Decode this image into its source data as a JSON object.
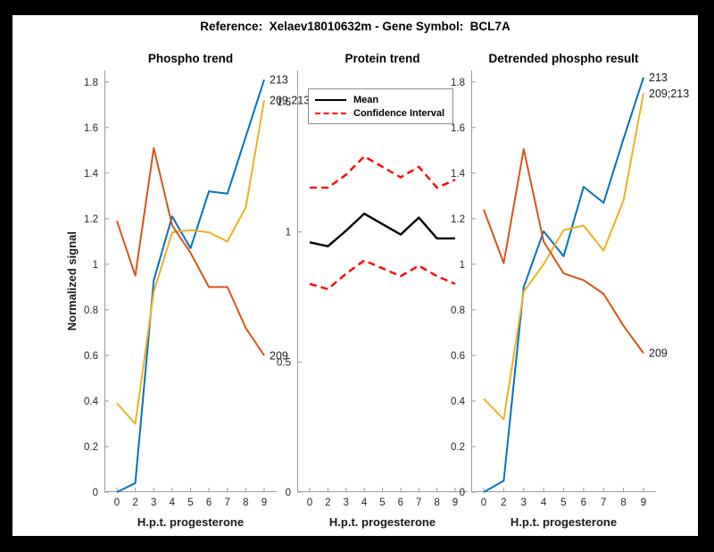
{
  "header": {
    "suptitle": "Reference:  Xelaev18010632m - Gene Symbol:  BCL7A"
  },
  "theme": {
    "background": "#000000",
    "figure_background": "#ffffff",
    "axis_color": "#999999",
    "tick_text_color": "#262626",
    "blue": "#0072BD",
    "orange": "#D95319",
    "yellow": "#EDB120",
    "ci_red": "#FF0000"
  },
  "chart_data": [
    {
      "type": "line",
      "title": "Phospho trend",
      "xlabel": "H.p.t. progesterone",
      "ylabel": "Normalized signal",
      "x_ticklabels": [
        "0",
        "2",
        "3",
        "4",
        "5",
        "6",
        "7",
        "8",
        "9"
      ],
      "yticks": [
        0,
        0.2,
        0.4,
        0.6,
        0.8,
        1,
        1.2,
        1.4,
        1.6,
        1.8
      ],
      "yticklabels": [
        "0",
        "0.2",
        "0.4",
        "0.6",
        "0.8",
        "1",
        "1.2",
        "1.4",
        "1.6",
        "1.8"
      ],
      "ylim": [
        0,
        1.85
      ],
      "grid": false,
      "legend": null,
      "series": [
        {
          "name": "213",
          "color": "#0072BD",
          "style": "solid",
          "end_label": "213",
          "values": [
            0,
            0.04,
            0.93,
            1.21,
            1.07,
            1.32,
            1.31,
            1.56,
            1.81
          ]
        },
        {
          "name": "209;213",
          "color": "#EDB120",
          "style": "solid",
          "end_label": "209;213",
          "values": [
            0.39,
            0.3,
            0.88,
            1.14,
            1.15,
            1.14,
            1.1,
            1.25,
            1.72
          ]
        },
        {
          "name": "209",
          "color": "#D95319",
          "style": "solid",
          "end_label": "209",
          "values": [
            1.19,
            0.95,
            1.51,
            1.17,
            1.05,
            0.9,
            0.9,
            0.72,
            0.6
          ]
        }
      ]
    },
    {
      "type": "line",
      "title": "Protein trend",
      "xlabel": "H.p.t. progesterone",
      "ylabel": "",
      "x_ticklabels": [
        "0",
        "2",
        "3",
        "4",
        "5",
        "6",
        "7",
        "8",
        "9"
      ],
      "yticks": [
        0,
        0.5,
        1,
        1.5
      ],
      "yticklabels": [
        "0",
        "0.5",
        "1",
        "1.5"
      ],
      "ylim": [
        0,
        1.62
      ],
      "grid": false,
      "legend": {
        "position": "northwest",
        "entries": [
          {
            "label": "Mean",
            "color": "#000000",
            "style": "solid"
          },
          {
            "label": "Confidence Interval",
            "color": "#FF0000",
            "style": "dashed"
          }
        ]
      },
      "series": [
        {
          "name": "Mean",
          "color": "#000000",
          "style": "solid",
          "width": 2.4,
          "values": [
            0.96,
            0.945,
            1.005,
            1.07,
            1.03,
            0.99,
            1.055,
            0.975,
            0.975
          ]
        },
        {
          "name": "Confidence Interval upper",
          "color": "#FF0000",
          "style": "dashed",
          "width": 2.4,
          "values": [
            1.17,
            1.17,
            1.22,
            1.29,
            1.25,
            1.21,
            1.25,
            1.17,
            1.2
          ]
        },
        {
          "name": "Confidence Interval lower",
          "color": "#FF0000",
          "style": "dashed",
          "width": 2.4,
          "values": [
            0.8,
            0.78,
            0.84,
            0.89,
            0.86,
            0.83,
            0.87,
            0.83,
            0.8
          ]
        }
      ]
    },
    {
      "type": "line",
      "title": "Detrended phospho result",
      "xlabel": "H.p.t. progesterone",
      "ylabel": "",
      "x_ticklabels": [
        "0",
        "2",
        "3",
        "4",
        "5",
        "6",
        "7",
        "8",
        "9"
      ],
      "yticks": [
        0,
        0.2,
        0.4,
        0.6,
        0.8,
        1,
        1.2,
        1.4,
        1.6,
        1.8
      ],
      "yticklabels": [
        "0",
        "0.2",
        "0.4",
        "0.6",
        "0.8",
        "1",
        "1.2",
        "1.4",
        "1.6",
        "1.8"
      ],
      "ylim": [
        0,
        1.85
      ],
      "grid": false,
      "legend": null,
      "series": [
        {
          "name": "213",
          "color": "#0072BD",
          "style": "solid",
          "end_label": "213",
          "values": [
            0,
            0.05,
            0.9,
            1.145,
            1.035,
            1.34,
            1.27,
            1.55,
            1.82
          ]
        },
        {
          "name": "209;213",
          "color": "#EDB120",
          "style": "solid",
          "end_label": "209;213",
          "values": [
            0.41,
            0.32,
            0.88,
            1.0,
            1.15,
            1.17,
            1.06,
            1.28,
            1.75
          ]
        },
        {
          "name": "209",
          "color": "#D95319",
          "style": "solid",
          "end_label": "209",
          "values": [
            1.24,
            1.005,
            1.505,
            1.1,
            0.96,
            0.93,
            0.87,
            0.73,
            0.61
          ]
        }
      ]
    }
  ]
}
